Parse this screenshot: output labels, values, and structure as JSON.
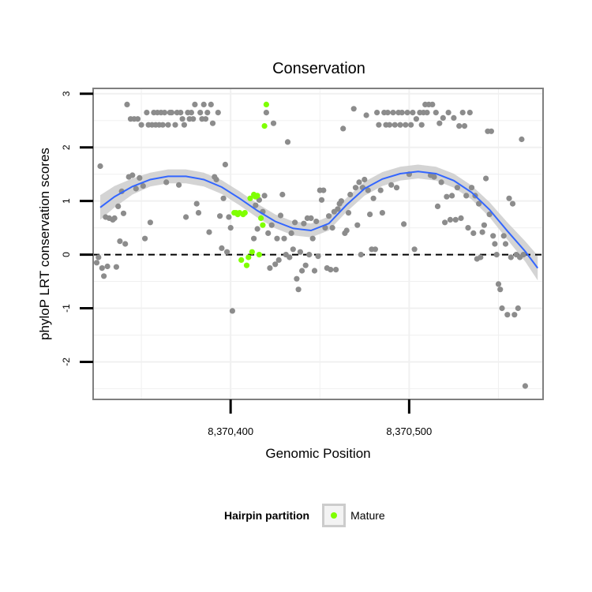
{
  "chart_data": {
    "type": "scatter",
    "title": "Conservation",
    "xlabel": "Genomic Position",
    "ylabel": "phyloP LRT conservation scores",
    "xlim": [
      8370323,
      8370575
    ],
    "ylim": [
      -2.7,
      3.1
    ],
    "x_ticks": [
      8370400,
      8370500
    ],
    "x_tick_labels": [
      "8,370,400",
      "8,370,500"
    ],
    "y_ticks": [
      -2,
      -1,
      0,
      1,
      2,
      3
    ],
    "y_tick_labels": [
      "-2",
      "-1",
      "0",
      "1",
      "2",
      "3"
    ],
    "reference_line": {
      "y": 0,
      "style": "dashed"
    },
    "grid": true,
    "colors": {
      "panel_background": "#ffffff",
      "grid": "#f0f0f0",
      "panel_border": "#7f7f7f",
      "other_points": "#8c8c8c",
      "mature_points": "#7fff00",
      "smooth_line": "#3366ff",
      "smooth_band": "#cccccc",
      "legend_key_border": "#cccccc"
    },
    "smooth": {
      "x": [
        8370327,
        8370335,
        8370345,
        8370355,
        8370365,
        8370375,
        8370385,
        8370395,
        8370405,
        8370415,
        8370425,
        8370435,
        8370445,
        8370455,
        8370465,
        8370475,
        8370485,
        8370495,
        8370505,
        8370515,
        8370525,
        8370535,
        8370545,
        8370555,
        8370565,
        8370572
      ],
      "y": [
        0.88,
        1.08,
        1.27,
        1.4,
        1.46,
        1.46,
        1.4,
        1.26,
        1.05,
        0.82,
        0.62,
        0.49,
        0.45,
        0.58,
        0.93,
        1.23,
        1.41,
        1.51,
        1.55,
        1.51,
        1.38,
        1.16,
        0.84,
        0.44,
        0.06,
        -0.25
      ],
      "band_halfwidth": [
        0.23,
        0.2,
        0.15,
        0.13,
        0.13,
        0.13,
        0.13,
        0.13,
        0.13,
        0.13,
        0.13,
        0.13,
        0.13,
        0.13,
        0.13,
        0.13,
        0.13,
        0.13,
        0.13,
        0.13,
        0.13,
        0.13,
        0.14,
        0.16,
        0.19,
        0.23
      ]
    },
    "series": [
      {
        "color": "#8c8c8c",
        "points": [
          [
            8370325,
            -0.15
          ],
          [
            8370326,
            -0.05
          ],
          [
            8370327,
            1.65
          ],
          [
            8370328,
            -0.25
          ],
          [
            8370329,
            -0.4
          ],
          [
            8370330,
            0.7
          ],
          [
            8370331,
            -0.22
          ],
          [
            8370332,
            0.68
          ],
          [
            8370334,
            0.65
          ],
          [
            8370335,
            0.68
          ],
          [
            8370336,
            -0.23
          ],
          [
            8370337,
            0.9
          ],
          [
            8370338,
            0.25
          ],
          [
            8370339,
            1.18
          ],
          [
            8370340,
            0.77
          ],
          [
            8370341,
            0.2
          ],
          [
            8370342,
            2.8
          ],
          [
            8370343,
            1.45
          ],
          [
            8370344,
            2.53
          ],
          [
            8370345,
            1.48
          ],
          [
            8370346,
            2.53
          ],
          [
            8370347,
            1.23
          ],
          [
            8370348,
            2.53
          ],
          [
            8370349,
            1.43
          ],
          [
            8370350,
            2.42
          ],
          [
            8370351,
            1.28
          ],
          [
            8370352,
            0.3
          ],
          [
            8370353,
            2.65
          ],
          [
            8370354,
            2.42
          ],
          [
            8370355,
            0.6
          ],
          [
            8370356,
            2.42
          ],
          [
            8370357,
            2.65
          ],
          [
            8370358,
            2.42
          ],
          [
            8370359,
            2.65
          ],
          [
            8370360,
            2.42
          ],
          [
            8370361,
            2.65
          ],
          [
            8370362,
            2.42
          ],
          [
            8370363,
            2.65
          ],
          [
            8370364,
            1.35
          ],
          [
            8370365,
            2.42
          ],
          [
            8370366,
            2.65
          ],
          [
            8370367,
            2.65
          ],
          [
            8370369,
            2.42
          ],
          [
            8370370,
            2.65
          ],
          [
            8370371,
            1.3
          ],
          [
            8370372,
            2.65
          ],
          [
            8370373,
            2.53
          ],
          [
            8370374,
            2.42
          ],
          [
            8370375,
            0.7
          ],
          [
            8370376,
            2.65
          ],
          [
            8370377,
            2.53
          ],
          [
            8370378,
            2.65
          ],
          [
            8370379,
            2.53
          ],
          [
            8370380,
            2.8
          ],
          [
            8370381,
            0.95
          ],
          [
            8370382,
            0.78
          ],
          [
            8370383,
            2.65
          ],
          [
            8370384,
            2.53
          ],
          [
            8370385,
            2.8
          ],
          [
            8370386,
            2.53
          ],
          [
            8370387,
            2.65
          ],
          [
            8370388,
            0.42
          ],
          [
            8370389,
            2.8
          ],
          [
            8370390,
            2.45
          ],
          [
            8370391,
            1.45
          ],
          [
            8370392,
            1.4
          ],
          [
            8370393,
            2.65
          ],
          [
            8370394,
            0.72
          ],
          [
            8370395,
            0.12
          ],
          [
            8370396,
            1.05
          ],
          [
            8370397,
            1.68
          ],
          [
            8370398,
            0.05
          ],
          [
            8370399,
            0.7
          ],
          [
            8370400,
            0.5
          ],
          [
            8370401,
            -1.05
          ],
          [
            8370413,
            0.3
          ],
          [
            8370414,
            0.92
          ],
          [
            8370415,
            0.48
          ],
          [
            8370416,
            1.02
          ],
          [
            8370418,
            0.8
          ],
          [
            8370419,
            1.1
          ],
          [
            8370420,
            2.65
          ],
          [
            8370421,
            0.4
          ],
          [
            8370422,
            -0.25
          ],
          [
            8370423,
            0.55
          ],
          [
            8370424,
            2.45
          ],
          [
            8370425,
            -0.18
          ],
          [
            8370426,
            0.3
          ],
          [
            8370427,
            -0.1
          ],
          [
            8370428,
            0.73
          ],
          [
            8370429,
            1.12
          ],
          [
            8370430,
            0.3
          ],
          [
            8370431,
            0.0
          ],
          [
            8370432,
            2.1
          ],
          [
            8370433,
            -0.05
          ],
          [
            8370434,
            0.4
          ],
          [
            8370435,
            0.1
          ],
          [
            8370436,
            0.6
          ],
          [
            8370437,
            -0.45
          ],
          [
            8370438,
            -0.65
          ],
          [
            8370439,
            0.05
          ],
          [
            8370440,
            -0.3
          ],
          [
            8370441,
            0.58
          ],
          [
            8370442,
            -0.2
          ],
          [
            8370443,
            0.68
          ],
          [
            8370444,
            0.0
          ],
          [
            8370445,
            0.68
          ],
          [
            8370446,
            0.3
          ],
          [
            8370447,
            -0.3
          ],
          [
            8370448,
            0.62
          ],
          [
            8370449,
            -0.03
          ],
          [
            8370450,
            1.2
          ],
          [
            8370451,
            1.02
          ],
          [
            8370452,
            1.2
          ],
          [
            8370453,
            0.5
          ],
          [
            8370454,
            -0.25
          ],
          [
            8370455,
            0.72
          ],
          [
            8370456,
            -0.28
          ],
          [
            8370457,
            0.5
          ],
          [
            8370458,
            0.8
          ],
          [
            8370459,
            -0.28
          ],
          [
            8370460,
            0.85
          ],
          [
            8370461,
            0.95
          ],
          [
            8370462,
            1.0
          ],
          [
            8370463,
            2.35
          ],
          [
            8370464,
            0.4
          ],
          [
            8370465,
            0.45
          ],
          [
            8370466,
            0.78
          ],
          [
            8370467,
            1.12
          ],
          [
            8370469,
            2.72
          ],
          [
            8370470,
            1.25
          ],
          [
            8370471,
            0.55
          ],
          [
            8370472,
            1.35
          ],
          [
            8370473,
            0.0
          ],
          [
            8370474,
            1.25
          ],
          [
            8370475,
            1.4
          ],
          [
            8370476,
            2.6
          ],
          [
            8370477,
            1.2
          ],
          [
            8370478,
            0.75
          ],
          [
            8370479,
            0.1
          ],
          [
            8370480,
            1.05
          ],
          [
            8370481,
            0.1
          ],
          [
            8370482,
            2.65
          ],
          [
            8370483,
            2.42
          ],
          [
            8370484,
            1.2
          ],
          [
            8370485,
            0.78
          ],
          [
            8370486,
            2.65
          ],
          [
            8370487,
            2.42
          ],
          [
            8370488,
            2.65
          ],
          [
            8370489,
            2.42
          ],
          [
            8370490,
            1.3
          ],
          [
            8370491,
            2.65
          ],
          [
            8370492,
            2.42
          ],
          [
            8370493,
            1.25
          ],
          [
            8370494,
            2.65
          ],
          [
            8370495,
            2.42
          ],
          [
            8370496,
            2.65
          ],
          [
            8370497,
            0.57
          ],
          [
            8370498,
            2.42
          ],
          [
            8370499,
            2.65
          ],
          [
            8370500,
            1.5
          ],
          [
            8370501,
            2.42
          ],
          [
            8370502,
            2.65
          ],
          [
            8370503,
            0.1
          ],
          [
            8370504,
            2.53
          ],
          [
            8370506,
            2.65
          ],
          [
            8370507,
            2.42
          ],
          [
            8370508,
            2.65
          ],
          [
            8370509,
            2.8
          ],
          [
            8370510,
            2.65
          ],
          [
            8370511,
            2.8
          ],
          [
            8370512,
            1.48
          ],
          [
            8370513,
            2.8
          ],
          [
            8370514,
            1.45
          ],
          [
            8370515,
            2.65
          ],
          [
            8370516,
            0.9
          ],
          [
            8370517,
            2.45
          ],
          [
            8370518,
            1.35
          ],
          [
            8370519,
            2.55
          ],
          [
            8370520,
            0.6
          ],
          [
            8370521,
            1.08
          ],
          [
            8370522,
            2.65
          ],
          [
            8370523,
            0.65
          ],
          [
            8370524,
            1.1
          ],
          [
            8370525,
            2.55
          ],
          [
            8370526,
            0.65
          ],
          [
            8370527,
            1.25
          ],
          [
            8370528,
            2.4
          ],
          [
            8370529,
            0.68
          ],
          [
            8370530,
            2.65
          ],
          [
            8370531,
            2.4
          ],
          [
            8370532,
            1.1
          ],
          [
            8370533,
            0.5
          ],
          [
            8370534,
            2.65
          ],
          [
            8370535,
            1.25
          ],
          [
            8370536,
            0.4
          ],
          [
            8370537,
            1.1
          ],
          [
            8370538,
            -0.08
          ],
          [
            8370539,
            0.95
          ],
          [
            8370540,
            -0.05
          ],
          [
            8370541,
            0.42
          ],
          [
            8370542,
            0.55
          ],
          [
            8370543,
            1.42
          ],
          [
            8370544,
            2.3
          ],
          [
            8370545,
            0.75
          ],
          [
            8370546,
            2.3
          ],
          [
            8370547,
            0.35
          ],
          [
            8370548,
            0.2
          ],
          [
            8370549,
            0.0
          ],
          [
            8370550,
            -0.55
          ],
          [
            8370551,
            -0.65
          ],
          [
            8370552,
            -1.0
          ],
          [
            8370553,
            0.35
          ],
          [
            8370554,
            0.2
          ],
          [
            8370555,
            -1.12
          ],
          [
            8370556,
            1.05
          ],
          [
            8370557,
            -0.05
          ],
          [
            8370558,
            0.95
          ],
          [
            8370559,
            -1.12
          ],
          [
            8370560,
            0.0
          ],
          [
            8370561,
            -1.0
          ],
          [
            8370562,
            -0.05
          ],
          [
            8370563,
            2.15
          ],
          [
            8370564,
            0.0
          ],
          [
            8370565,
            -2.45
          ]
        ]
      },
      {
        "name": "Mature",
        "color": "#7fff00",
        "points": [
          [
            8370402,
            0.78
          ],
          [
            8370403,
            0.78
          ],
          [
            8370404,
            0.75
          ],
          [
            8370405,
            0.78
          ],
          [
            8370406,
            -0.1
          ],
          [
            8370407,
            0.75
          ],
          [
            8370408,
            0.78
          ],
          [
            8370409,
            -0.2
          ],
          [
            8370410,
            -0.05
          ],
          [
            8370411,
            1.05
          ],
          [
            8370412,
            0.05
          ],
          [
            8370413,
            1.12
          ],
          [
            8370414,
            1.08
          ],
          [
            8370415,
            1.1
          ],
          [
            8370416,
            0.0
          ],
          [
            8370417,
            0.68
          ],
          [
            8370418,
            0.55
          ],
          [
            8370419,
            2.4
          ],
          [
            8370420,
            2.8
          ]
        ]
      }
    ]
  },
  "legend": {
    "title": "Hairpin partition",
    "items": [
      {
        "label": "Mature",
        "color": "#7fff00"
      }
    ]
  }
}
